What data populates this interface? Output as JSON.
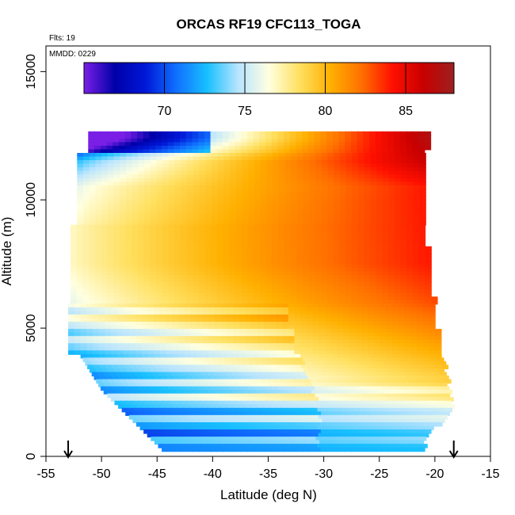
{
  "chart_data": {
    "type": "heatmap",
    "title": "ORCAS RF19 CFC113_TOGA",
    "info_lines": [
      "Flts: 19",
      "MMDD: 0229"
    ],
    "xlabel": "Latitude (deg N)",
    "ylabel": "Altitude (m)",
    "xlim": [
      -55,
      -15
    ],
    "ylim": [
      0,
      16000
    ],
    "x_ticks": [
      -55,
      -50,
      -45,
      -40,
      -35,
      -30,
      -25,
      -20,
      -15
    ],
    "y_ticks": [
      0,
      5000,
      10000,
      15000
    ],
    "colorbar": {
      "range": [
        65,
        88
      ],
      "ticks": [
        70,
        75,
        80,
        85
      ],
      "colors": [
        "#7a1fe6",
        "#0000a8",
        "#0018d8",
        "#1070ff",
        "#18c0ff",
        "#b8e4ff",
        "#ffffe0",
        "#ffe060",
        "#ffb000",
        "#ff7000",
        "#ff1000",
        "#c80000",
        "#9c2020"
      ]
    },
    "arrow_markers_lat": [
      -53,
      -18.3
    ],
    "field": {
      "comment_free_profile_by_altitude": [
        {
          "alt": 12400,
          "south": 66,
          "north": 87
        },
        {
          "alt": 11500,
          "south": 73,
          "north": 86
        },
        {
          "alt": 10500,
          "south": 76,
          "north": 84
        },
        {
          "alt": 9000,
          "south": 77,
          "north": 84
        },
        {
          "alt": 7500,
          "south": 77,
          "north": 84
        },
        {
          "alt": 6000,
          "south": 76,
          "north": 83
        },
        {
          "alt": 4500,
          "south": 74,
          "north": 81
        },
        {
          "alt": 3000,
          "south": 73,
          "north": 79
        },
        {
          "alt": 1500,
          "south": 72,
          "north": 75
        },
        {
          "alt": 300,
          "south": 72,
          "north": 73
        }
      ]
    }
  }
}
